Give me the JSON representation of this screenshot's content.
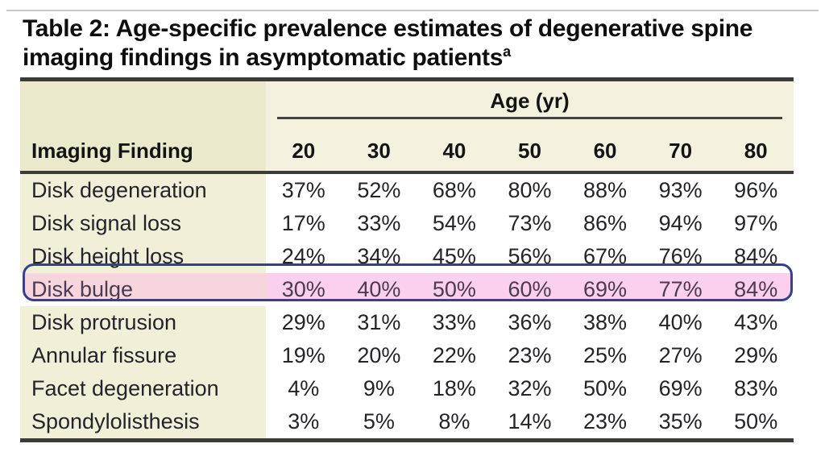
{
  "title": {
    "lines": [
      "Table 2: Age-specific prevalence estimates of degenerative spine",
      "imaging findings in asymptomatic patients"
    ],
    "superscript": "a"
  },
  "table": {
    "corner_header": "Imaging Finding",
    "age_header": "Age (yr)",
    "age_columns": [
      "20",
      "30",
      "40",
      "50",
      "60",
      "70",
      "80"
    ],
    "rows": [
      {
        "finding": "Disk degeneration",
        "values": [
          "37%",
          "52%",
          "68%",
          "80%",
          "88%",
          "93%",
          "96%"
        ],
        "highlighted": false
      },
      {
        "finding": "Disk signal loss",
        "values": [
          "17%",
          "33%",
          "54%",
          "73%",
          "86%",
          "94%",
          "97%"
        ],
        "highlighted": false
      },
      {
        "finding": "Disk height loss",
        "values": [
          "24%",
          "34%",
          "45%",
          "56%",
          "67%",
          "76%",
          "84%"
        ],
        "highlighted": false
      },
      {
        "finding": "Disk bulge",
        "values": [
          "30%",
          "40%",
          "50%",
          "60%",
          "69%",
          "77%",
          "84%"
        ],
        "highlighted": true
      },
      {
        "finding": "Disk protrusion",
        "values": [
          "29%",
          "31%",
          "33%",
          "36%",
          "38%",
          "40%",
          "43%"
        ],
        "highlighted": false
      },
      {
        "finding": "Annular fissure",
        "values": [
          "19%",
          "20%",
          "22%",
          "23%",
          "25%",
          "27%",
          "29%"
        ],
        "highlighted": false
      },
      {
        "finding": "Facet degeneration",
        "values": [
          "4%",
          "9%",
          "18%",
          "32%",
          "50%",
          "69%",
          "83%"
        ],
        "highlighted": false
      },
      {
        "finding": "Spondylolisthesis",
        "values": [
          "3%",
          "5%",
          "8%",
          "14%",
          "23%",
          "35%",
          "50%"
        ],
        "highlighted": false
      }
    ]
  },
  "colors": {
    "header_label_beige": "#ebe9cb",
    "header_age_beige": "#f4f2df",
    "body_label_beige": "#f1efd8",
    "rule_dark": "#3b3b38",
    "top_rule_gray": "#cbcbcb",
    "highlight_fill_label": "#f6d6dc",
    "highlight_fill_data": "#fbcfee",
    "highlight_border": "#35418f",
    "highlight_text": "#4b3a52",
    "body_text": "#242428"
  }
}
